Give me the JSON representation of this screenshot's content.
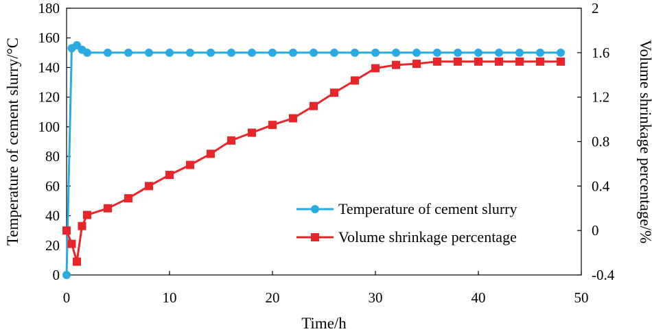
{
  "chart_data": {
    "type": "line",
    "title": "",
    "xlabel": "Time/h",
    "ylabel": "Temperature of cement slurry/°C",
    "y2label": "Volume shrinkage percentage/%",
    "xlim": [
      0,
      50
    ],
    "ylim": [
      0,
      180
    ],
    "y2lim": [
      -0.4,
      2
    ],
    "xticks": [
      0,
      10,
      20,
      30,
      40,
      50
    ],
    "xtick_labels": [
      "0",
      "10",
      "20",
      "30",
      "40",
      "50"
    ],
    "yticks": [
      0,
      20,
      40,
      60,
      80,
      100,
      120,
      140,
      160,
      180
    ],
    "ytick_labels": [
      "0",
      "20",
      "40",
      "60",
      "80",
      "100",
      "120",
      "140",
      "160",
      "180"
    ],
    "y2ticks": [
      -0.4,
      0,
      0.4,
      0.8,
      1.2,
      1.6,
      2
    ],
    "y2tick_labels": [
      "-0.4",
      "0",
      "0.4",
      "0.8",
      "1.2",
      "1.6",
      "2"
    ],
    "legend_position": "bottom-right",
    "grid": false,
    "series": [
      {
        "name": "Temperature of cement slurry",
        "axis": "left",
        "color": "#29abe2",
        "marker": "circle",
        "x": [
          0,
          0.5,
          1,
          1.5,
          2,
          4,
          6,
          8,
          10,
          12,
          14,
          16,
          18,
          20,
          22,
          24,
          26,
          28,
          30,
          32,
          34,
          36,
          38,
          40,
          42,
          44,
          46,
          48
        ],
        "y": [
          0,
          153,
          155,
          152,
          150,
          150,
          150,
          150,
          150,
          150,
          150,
          150,
          150,
          150,
          150,
          150,
          150,
          150,
          150,
          150,
          150,
          150,
          150,
          150,
          150,
          150,
          150,
          150
        ]
      },
      {
        "name": "Volume shrinkage percentage",
        "axis": "right",
        "color": "#e8262a",
        "marker": "square",
        "x": [
          0,
          0.5,
          1,
          1.5,
          2,
          4,
          6,
          8,
          10,
          12,
          14,
          16,
          18,
          20,
          22,
          24,
          26,
          28,
          30,
          32,
          34,
          36,
          38,
          40,
          42,
          44,
          46,
          48
        ],
        "y": [
          0,
          -0.12,
          -0.28,
          0.04,
          0.14,
          0.2,
          0.29,
          0.4,
          0.5,
          0.59,
          0.69,
          0.81,
          0.88,
          0.95,
          1.01,
          1.12,
          1.24,
          1.35,
          1.46,
          1.49,
          1.5,
          1.52,
          1.52,
          1.52,
          1.52,
          1.52,
          1.52,
          1.52
        ]
      }
    ]
  }
}
